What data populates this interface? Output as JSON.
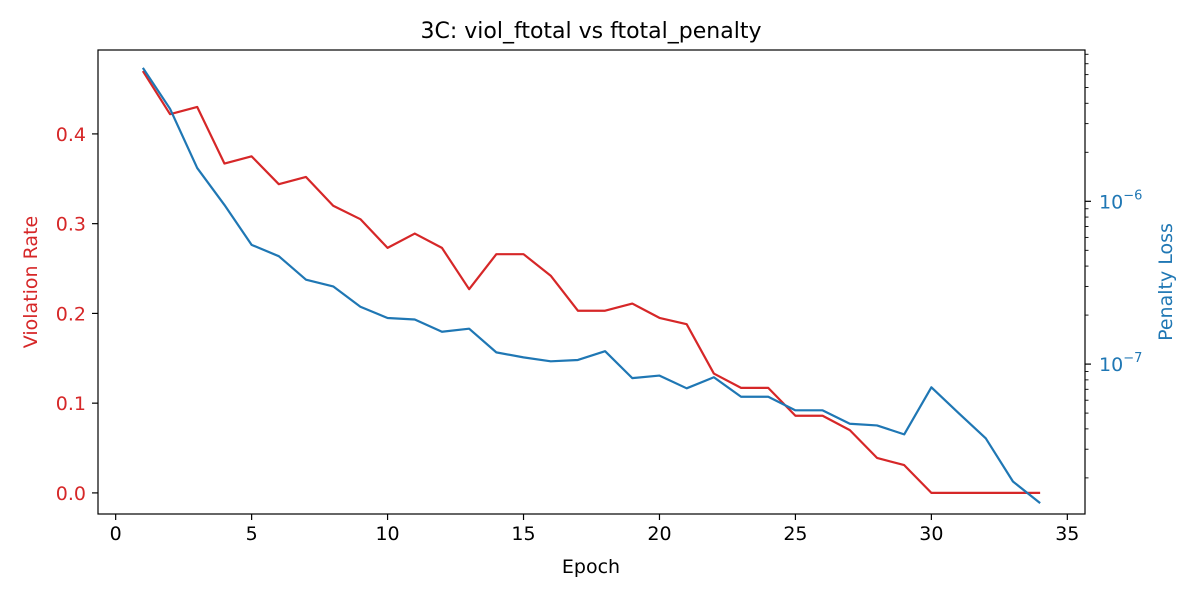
{
  "chart_data": {
    "type": "line",
    "title": "3C: viol_ftotal vs ftotal_penalty",
    "xlabel": "Epoch",
    "x": [
      1,
      2,
      3,
      4,
      5,
      6,
      7,
      8,
      9,
      10,
      11,
      12,
      13,
      14,
      15,
      16,
      17,
      18,
      19,
      20,
      21,
      22,
      23,
      24,
      25,
      26,
      27,
      28,
      29,
      30,
      31,
      32,
      33,
      34
    ],
    "xlim": [
      -0.65,
      35.65
    ],
    "xticks": [
      0,
      5,
      10,
      15,
      20,
      25,
      30,
      35
    ],
    "left_axis": {
      "label": "Violation Rate",
      "color": "#d62728",
      "scale": "linear",
      "ylim": [
        -0.0235,
        0.4935
      ],
      "ticks": [
        0.0,
        0.1,
        0.2,
        0.3,
        0.4
      ],
      "tick_labels": [
        "0.0",
        "0.1",
        "0.2",
        "0.3",
        "0.4"
      ]
    },
    "right_axis": {
      "label": "Penalty Loss",
      "color": "#1f77b4",
      "scale": "log",
      "ylim": [
        1.2e-08,
        8.5e-06
      ],
      "ticks": [
        1e-07,
        1e-06
      ],
      "tick_labels": [
        {
          "base": "10",
          "exp": "−7"
        },
        {
          "base": "10",
          "exp": "−6"
        }
      ]
    },
    "series": [
      {
        "axis": "left",
        "color": "#d62728",
        "values": [
          0.47,
          0.422,
          0.43,
          0.367,
          0.375,
          0.344,
          0.352,
          0.32,
          0.305,
          0.273,
          0.289,
          0.273,
          0.227,
          0.266,
          0.266,
          0.242,
          0.203,
          0.203,
          0.211,
          0.195,
          0.188,
          0.133,
          0.117,
          0.117,
          0.086,
          0.086,
          0.07,
          0.039,
          0.031,
          0.0,
          0.0,
          0.0,
          0.0,
          0.0
        ]
      },
      {
        "axis": "right",
        "color": "#1f77b4",
        "values": [
          6.6e-06,
          3.7e-06,
          1.6e-06,
          9.5e-07,
          5.4e-07,
          4.6e-07,
          3.3e-07,
          3e-07,
          2.25e-07,
          1.92e-07,
          1.88e-07,
          1.58e-07,
          1.65e-07,
          1.18e-07,
          1.1e-07,
          1.04e-07,
          1.06e-07,
          1.2e-07,
          8.2e-08,
          8.5e-08,
          7.1e-08,
          8.3e-08,
          6.3e-08,
          6.3e-08,
          5.2e-08,
          5.2e-08,
          4.3e-08,
          4.2e-08,
          3.7e-08,
          7.2e-08,
          5e-08,
          3.5e-08,
          1.9e-08,
          1.4e-08
        ]
      }
    ]
  }
}
